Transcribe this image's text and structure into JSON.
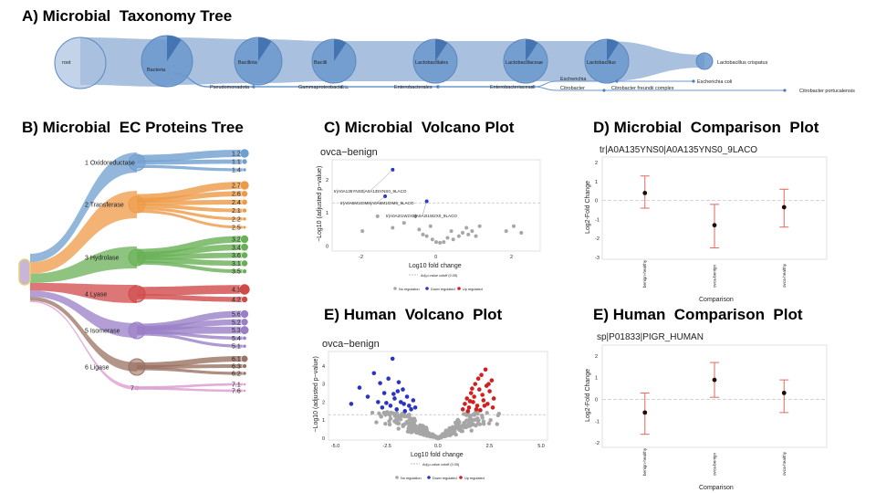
{
  "panels": {
    "a": {
      "title": "A) Microbial  Taxonomy Tree"
    },
    "b": {
      "title": "B) Microbial  EC Proteins Tree"
    },
    "c": {
      "title": "C) Microbial  Volcano Plot"
    },
    "d": {
      "title": "D) Microbial  Comparison  Plot"
    },
    "e1": {
      "title": "E) Human  Volcano  Plot"
    },
    "e2": {
      "title": "E) Human  Comparison  Plot"
    }
  },
  "taxonomy": {
    "main": [
      "root",
      "Bacteria",
      "Bacillota",
      "Bacilli",
      "Lactobacillales",
      "Lactobacillaceae",
      "Lactobacillus",
      "Lactobacillus crispatus"
    ],
    "branch": [
      "Pseudomonadota",
      "Gammaproteobacteria",
      "Enterobacterales",
      "Enterobacteriaceae"
    ],
    "leaves": [
      "Escherichia",
      "Escherichia coli",
      "Citrobacter",
      "Citrobacter freundii complex",
      "Citrobacter portucalensis"
    ]
  },
  "ec_tree": {
    "root_color": "#e7d27a",
    "classes": [
      {
        "label": "1 Oxidoreductase",
        "color": "#6f9fcf",
        "children": [
          "1.2",
          "1.1",
          "1.4"
        ]
      },
      {
        "label": "2 Transferase",
        "color": "#ee9a45",
        "children": [
          "2.7",
          "2.6",
          "2.4",
          "2.1",
          "2.2",
          "2.5"
        ]
      },
      {
        "label": "3 Hydrolase",
        "color": "#68b055",
        "children": [
          "3.2",
          "3.4",
          "3.6",
          "3.1",
          "3.5"
        ]
      },
      {
        "label": "4 Lyase",
        "color": "#d14a4a",
        "children": [
          "4.1",
          "4.2"
        ]
      },
      {
        "label": "5 Isomerase",
        "color": "#9a7fc7",
        "children": [
          "5.6",
          "5.2",
          "5.3",
          "5.4",
          "5.1"
        ]
      },
      {
        "label": "6 Ligase",
        "color": "#9a7262",
        "children": [
          "6.1",
          "6.3",
          "6.2"
        ]
      },
      {
        "label": "7",
        "color": "#d99ad0",
        "children": [
          "7.1",
          "7.6"
        ]
      }
    ]
  },
  "microbial_volcano": {
    "subtitle": "ovca−benign",
    "xlabel": "Log10 fold change",
    "ylabel": "−Log10 (adjusted p−value)",
    "xticks": [
      "-2",
      "0",
      "2"
    ],
    "yticks": [
      "0",
      "1",
      "2"
    ],
    "cutoff_label": "Adj.p-value cutoff (0.05)",
    "legend": [
      "No regulation",
      "Down regulated",
      "Up regulated"
    ],
    "labels": [
      "tr|A0A135YNS0|A0A135YNS0_9LACO",
      "tr|A0A6M1GIM6|A0A6M1GIM6_9LACO",
      "tr|A0A2I1W2X0|A0A2I1W2X0_9LACO"
    ]
  },
  "microbial_comparison": {
    "subtitle": "tr|A0A135YNS0|A0A135YNS0_9LACO",
    "xlabel": "Comparison",
    "ylabel": "Log2-Fold Change",
    "yticks": [
      "2",
      "1",
      "0",
      "-1",
      "-2",
      "-3"
    ],
    "categories": [
      "benign-healthy",
      "ovca-benign",
      "ovca-healthy"
    ],
    "estimates": [
      0.4,
      -1.3,
      -0.35
    ],
    "ci_low": [
      -0.4,
      -2.5,
      -1.4
    ],
    "ci_high": [
      1.3,
      -0.2,
      0.6
    ]
  },
  "human_volcano": {
    "subtitle": "ovca−benign",
    "xlabel": "Log10 fold change",
    "ylabel": "−Log10 (adjusted p−value)",
    "xticks": [
      "-5.0",
      "-2.5",
      "0.0",
      "2.5",
      "5.0"
    ],
    "yticks": [
      "0",
      "1",
      "2",
      "3",
      "4"
    ],
    "cutoff_label": "Adj.p-value cutoff (0.05)",
    "legend": [
      "No regulation",
      "Down regulated",
      "Up regulated"
    ]
  },
  "human_comparison": {
    "subtitle": "sp|P01833|PIGR_HUMAN",
    "xlabel": "Comparison",
    "ylabel": "Log2-Fold Change",
    "yticks": [
      "2",
      "1",
      "0",
      "-1",
      "-2"
    ],
    "categories": [
      "benign-healthy",
      "ovca-benign",
      "ovca-healthy"
    ],
    "estimates": [
      -0.6,
      0.9,
      0.3
    ],
    "ci_low": [
      -1.6,
      0.1,
      -0.6
    ],
    "ci_high": [
      0.3,
      1.7,
      0.9
    ]
  },
  "chart_data": [
    {
      "type": "scatter",
      "title": "ovca−benign",
      "xlabel": "Log10 fold change",
      "ylabel": "−Log10 (adjusted p−value)",
      "xlim": [
        -2.8,
        2.7
      ],
      "ylim": [
        -0.15,
        2.6
      ],
      "cutoff": 1.3,
      "series": [
        {
          "name": "No regulation",
          "color": "#a6a6a6",
          "x": [
            -2.0,
            -1.2,
            -0.6,
            -0.5,
            -0.4,
            -0.3,
            -0.15,
            -0.05,
            0.05,
            0.15,
            0.25,
            0.35,
            0.55,
            0.65,
            0.75,
            0.8,
            0.9,
            1.0,
            1.8,
            2.0,
            2.2,
            1.1,
            -0.9,
            -0.2,
            0.4,
            -1.6
          ],
          "y": [
            0.45,
            0.55,
            0.9,
            0.5,
            0.35,
            0.3,
            0.2,
            0.12,
            0.1,
            0.12,
            0.25,
            0.45,
            0.3,
            0.4,
            0.55,
            0.35,
            0.45,
            0.3,
            0.45,
            0.6,
            0.4,
            0.6,
            0.7,
            0.6,
            0.2,
            0.9
          ]
        },
        {
          "name": "Down regulated",
          "color": "#2b33c4",
          "x": [
            -1.2,
            -1.4,
            -0.3
          ],
          "y": [
            2.3,
            1.5,
            1.35
          ]
        },
        {
          "name": "Up regulated",
          "color": "#d01f1f",
          "x": [],
          "y": []
        }
      ]
    },
    {
      "type": "scatter",
      "title": "tr|A0A135YNS0|A0A135YNS0_9LACO",
      "xlabel": "Comparison",
      "ylabel": "Log2-Fold Change",
      "categories": [
        "benign-healthy",
        "ovca-benign",
        "ovca-healthy"
      ],
      "ylim": [
        -3.1,
        2.3
      ],
      "values": [
        0.4,
        -1.3,
        -0.35
      ],
      "ci_low": [
        -0.4,
        -2.5,
        -1.4
      ],
      "ci_high": [
        1.3,
        -0.2,
        0.6
      ]
    },
    {
      "type": "scatter",
      "title": "ovca−benign",
      "xlabel": "Log10 fold change",
      "ylabel": "−Log10 (adjusted p−value)",
      "xlim": [
        -5.3,
        5.3
      ],
      "ylim": [
        -0.1,
        4.8
      ],
      "cutoff": 1.3,
      "series": [
        {
          "name": "No regulation",
          "color": "#a6a6a6",
          "generated": "dense cloud around x in [-3.5, 3.5], y in [0, 1.6]"
        },
        {
          "name": "Down regulated",
          "color": "#2b33c4",
          "x": [
            -4.2,
            -3.8,
            -3.4,
            -3.1,
            -2.9,
            -2.7,
            -2.6,
            -2.4,
            -2.3,
            -2.2,
            -2.1,
            -2.0,
            -1.9,
            -1.8,
            -1.7,
            -1.6,
            -1.5,
            -1.4,
            -1.3,
            -1.2,
            -1.1,
            -2.5,
            -2.8,
            -1.95,
            -1.65,
            -2.15
          ],
          "y": [
            1.9,
            2.8,
            2.3,
            3.6,
            2.0,
            1.7,
            2.5,
            3.3,
            1.8,
            4.4,
            2.2,
            1.6,
            3.1,
            2.0,
            2.7,
            1.5,
            2.3,
            1.8,
            1.6,
            2.1,
            1.7,
            1.95,
            3.05,
            2.6,
            1.9,
            2.45
          ]
        },
        {
          "name": "Up regulated",
          "color": "#d01f1f",
          "x": [
            1.2,
            1.3,
            1.4,
            1.5,
            1.6,
            1.7,
            1.8,
            1.9,
            2.0,
            2.1,
            2.2,
            2.3,
            2.4,
            2.5,
            2.6,
            2.7,
            1.45,
            1.75,
            2.05,
            2.35,
            2.65,
            1.55,
            1.85,
            2.15,
            2.45,
            1.95,
            2.25,
            1.65
          ],
          "y": [
            1.6,
            1.9,
            2.2,
            1.7,
            2.5,
            2.0,
            3.0,
            1.8,
            2.7,
            3.5,
            2.1,
            3.8,
            1.9,
            2.6,
            3.2,
            2.2,
            1.5,
            2.3,
            1.55,
            2.9,
            1.7,
            2.05,
            1.6,
            2.4,
            3.0,
            3.3,
            1.8,
            2.75
          ]
        }
      ]
    },
    {
      "type": "scatter",
      "title": "sp|P01833|PIGR_HUMAN",
      "xlabel": "Comparison",
      "ylabel": "Log2-Fold Change",
      "categories": [
        "benign-healthy",
        "ovca-benign",
        "ovca-healthy"
      ],
      "ylim": [
        -2.2,
        2.5
      ],
      "values": [
        -0.6,
        0.9,
        0.3
      ],
      "ci_low": [
        -1.6,
        0.1,
        -0.6
      ],
      "ci_high": [
        0.3,
        1.7,
        0.9
      ]
    }
  ]
}
